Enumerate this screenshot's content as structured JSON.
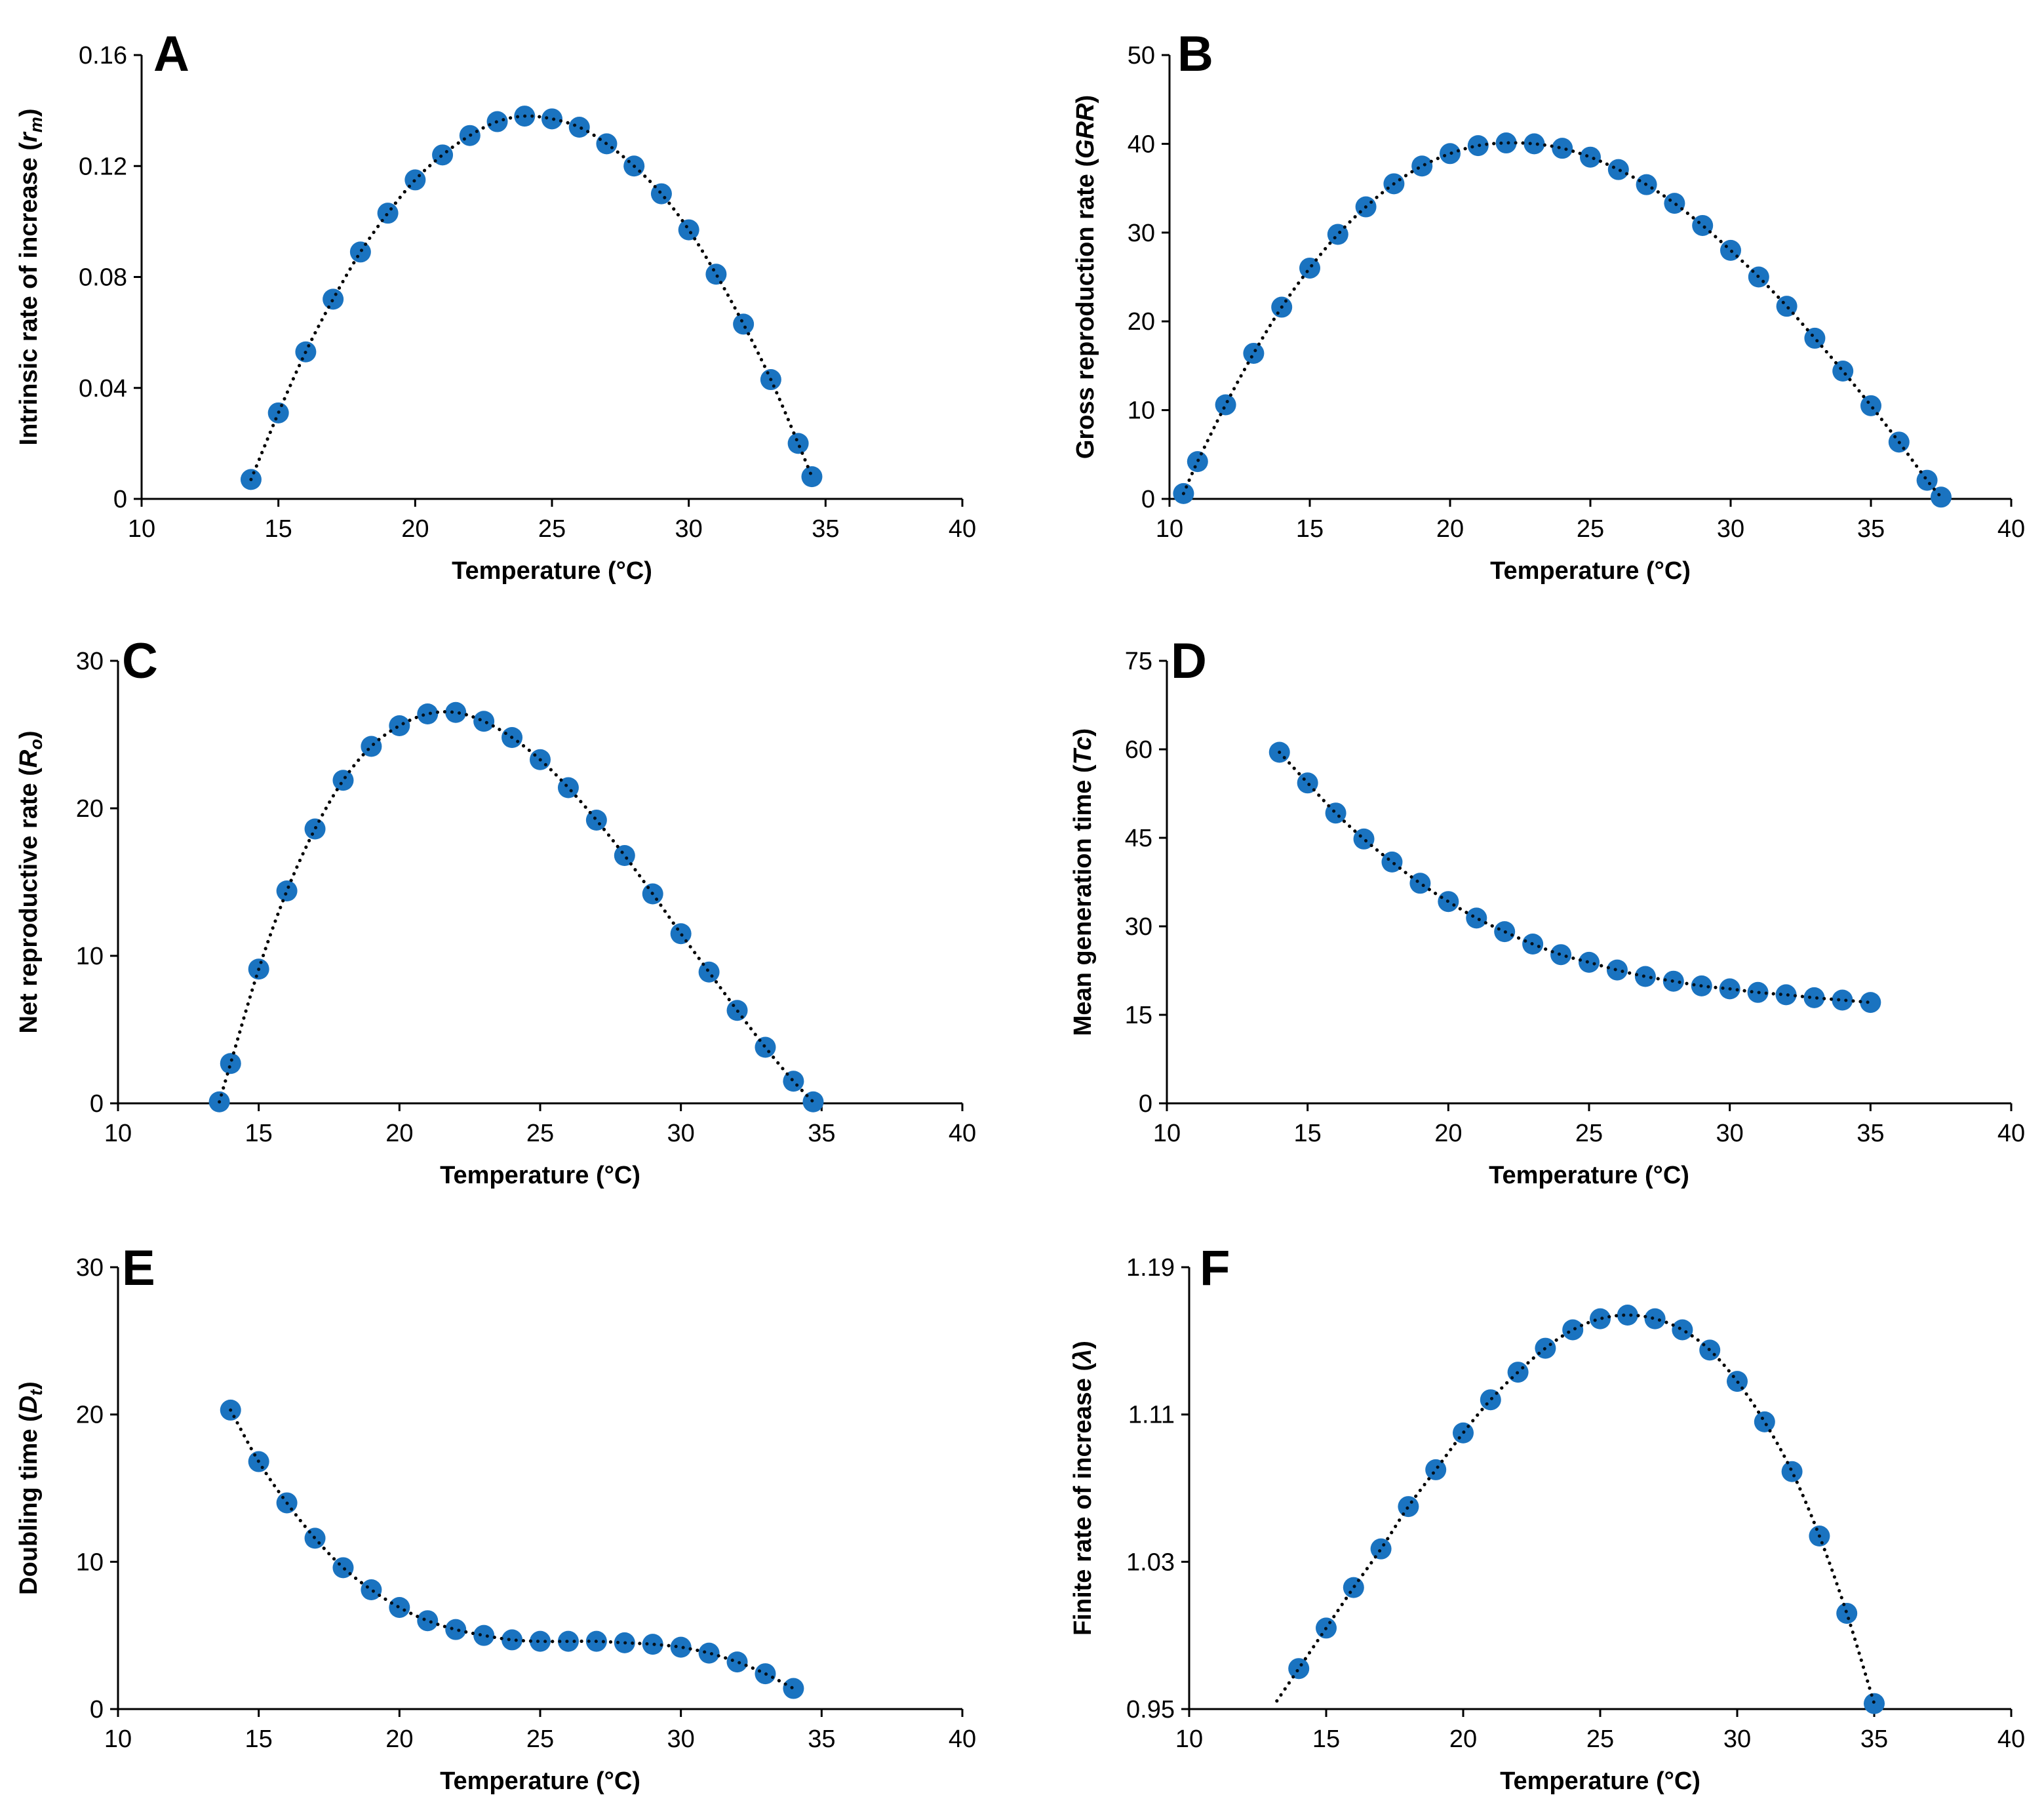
{
  "figure": {
    "style": {
      "marker_color": "#1a73c0",
      "trend_color": "#000000",
      "axis_color": "#000000"
    }
  },
  "chart_data": [
    {
      "panel": "A",
      "type": "scatter",
      "trendline": "dotted",
      "xlabel": "Temperature (°C)",
      "ylabel_parts": [
        {
          "text": "Intrinsic rate of increase (",
          "style": "normal"
        },
        {
          "text": "r",
          "style": "italic"
        },
        {
          "text": "m",
          "style": "italic-sub"
        },
        {
          "text": ")",
          "style": "normal"
        }
      ],
      "xlim": [
        10,
        40
      ],
      "ylim": [
        0,
        0.16
      ],
      "xticks": [
        10,
        15,
        20,
        25,
        30,
        35,
        40
      ],
      "yticks": [
        0,
        0.04,
        0.08,
        0.12,
        0.16
      ],
      "x": [
        14,
        15,
        16,
        17,
        18,
        19,
        20,
        21,
        22,
        23,
        24,
        25,
        26,
        27,
        28,
        29,
        30,
        31,
        32,
        33,
        34,
        34.5
      ],
      "y": [
        0.007,
        0.031,
        0.053,
        0.072,
        0.089,
        0.103,
        0.115,
        0.124,
        0.131,
        0.136,
        0.138,
        0.137,
        0.134,
        0.128,
        0.12,
        0.11,
        0.097,
        0.081,
        0.063,
        0.043,
        0.02,
        0.008
      ]
    },
    {
      "panel": "B",
      "type": "scatter",
      "trendline": "dotted",
      "xlabel": "Temperature (°C)",
      "ylabel_parts": [
        {
          "text": "Gross reproduction rate (",
          "style": "normal"
        },
        {
          "text": "GRR",
          "style": "italic"
        },
        {
          "text": ")",
          "style": "normal"
        }
      ],
      "xlim": [
        10,
        40
      ],
      "ylim": [
        0,
        50
      ],
      "xticks": [
        10,
        15,
        20,
        25,
        30,
        35,
        40
      ],
      "yticks": [
        0,
        10,
        20,
        30,
        40,
        50
      ],
      "x": [
        10.5,
        11,
        12,
        13,
        14,
        15,
        16,
        17,
        18,
        19,
        20,
        21,
        22,
        23,
        24,
        25,
        26,
        27,
        28,
        29,
        30,
        31,
        32,
        33,
        34,
        35,
        36,
        37,
        37.5
      ],
      "y": [
        0.6,
        4.2,
        10.6,
        16.4,
        21.6,
        26.0,
        29.8,
        32.9,
        35.5,
        37.5,
        38.9,
        39.8,
        40.1,
        40.0,
        39.5,
        38.5,
        37.1,
        35.4,
        33.3,
        30.8,
        28.0,
        25.0,
        21.7,
        18.1,
        14.4,
        10.5,
        6.4,
        2.1,
        0.2
      ]
    },
    {
      "panel": "C",
      "type": "scatter",
      "trendline": "dotted",
      "xlabel": "Temperature (°C)",
      "ylabel_parts": [
        {
          "text": "Net reproductive rate (",
          "style": "normal"
        },
        {
          "text": "R",
          "style": "italic"
        },
        {
          "text": "o",
          "style": "italic-sub"
        },
        {
          "text": ")",
          "style": "normal"
        }
      ],
      "xlim": [
        10,
        40
      ],
      "ylim": [
        0,
        30
      ],
      "xticks": [
        10,
        15,
        20,
        25,
        30,
        35,
        40
      ],
      "yticks": [
        0,
        10,
        20,
        30
      ],
      "x": [
        13.6,
        14,
        15,
        16,
        17,
        18,
        19,
        20,
        21,
        22,
        23,
        24,
        25,
        26,
        27,
        28,
        29,
        30,
        31,
        32,
        33,
        34,
        34.7
      ],
      "y": [
        0.1,
        2.7,
        9.1,
        14.4,
        18.6,
        21.9,
        24.2,
        25.6,
        26.4,
        26.5,
        25.9,
        24.8,
        23.3,
        21.4,
        19.2,
        16.8,
        14.2,
        11.5,
        8.9,
        6.3,
        3.8,
        1.5,
        0.1
      ]
    },
    {
      "panel": "D",
      "type": "scatter",
      "trendline": "dotted",
      "xlabel": "Temperature (°C)",
      "ylabel_parts": [
        {
          "text": "Mean generation time (",
          "style": "normal"
        },
        {
          "text": "Tc",
          "style": "italic"
        },
        {
          "text": ")",
          "style": "normal"
        }
      ],
      "xlim": [
        10,
        40
      ],
      "ylim": [
        0,
        75
      ],
      "xticks": [
        10,
        15,
        20,
        25,
        30,
        35,
        40
      ],
      "yticks": [
        0,
        15,
        30,
        45,
        60,
        75
      ],
      "x": [
        14,
        15,
        16,
        17,
        18,
        19,
        20,
        21,
        22,
        23,
        24,
        25,
        26,
        27,
        28,
        29,
        30,
        31,
        32,
        33,
        34,
        35
      ],
      "y": [
        59.5,
        54.3,
        49.2,
        44.8,
        40.9,
        37.3,
        34.2,
        31.4,
        29.1,
        27.0,
        25.2,
        23.9,
        22.6,
        21.5,
        20.7,
        19.9,
        19.4,
        18.8,
        18.4,
        17.9,
        17.5,
        17.1
      ]
    },
    {
      "panel": "E",
      "type": "scatter",
      "trendline": "dotted",
      "xlabel": "Temperature (°C)",
      "ylabel_parts": [
        {
          "text": "Doubling time (",
          "style": "normal"
        },
        {
          "text": "D",
          "style": "italic"
        },
        {
          "text": "t",
          "style": "italic-sub"
        },
        {
          "text": ")",
          "style": "normal"
        }
      ],
      "xlim": [
        10,
        40
      ],
      "ylim": [
        0,
        30
      ],
      "xticks": [
        10,
        15,
        20,
        25,
        30,
        35,
        40
      ],
      "yticks": [
        0,
        10,
        20,
        30
      ],
      "x": [
        14,
        15,
        16,
        17,
        18,
        19,
        20,
        21,
        22,
        23,
        24,
        25,
        26,
        27,
        28,
        29,
        30,
        31,
        32,
        33,
        34
      ],
      "y": [
        20.3,
        16.8,
        14.0,
        11.6,
        9.6,
        8.1,
        6.9,
        6.0,
        5.4,
        5.0,
        4.7,
        4.6,
        4.6,
        4.6,
        4.5,
        4.4,
        4.2,
        3.8,
        3.2,
        2.4,
        1.4
      ]
    },
    {
      "panel": "F",
      "type": "scatter",
      "trendline": "dotted",
      "xlabel": "Temperature (°C)",
      "ylabel_parts": [
        {
          "text": "Finite rate of increase (",
          "style": "normal"
        },
        {
          "text": "λ",
          "style": "italic"
        },
        {
          "text": ")",
          "style": "normal"
        }
      ],
      "xlim": [
        10,
        40
      ],
      "ylim": [
        0.95,
        1.19
      ],
      "xticks": [
        10,
        15,
        20,
        25,
        30,
        35,
        40
      ],
      "yticks": [
        0.95,
        1.03,
        1.11,
        1.19
      ],
      "ytick_labels": [
        "0.95",
        "1.03",
        "1.11",
        "1.19"
      ],
      "trend_x_start": 13.2,
      "x": [
        14,
        15,
        16,
        17,
        18,
        19,
        20,
        21,
        22,
        23,
        24,
        25,
        26,
        27,
        28,
        29,
        30,
        31,
        32,
        33,
        34,
        35
      ],
      "y": [
        0.972,
        0.994,
        1.016,
        1.037,
        1.06,
        1.08,
        1.1,
        1.118,
        1.133,
        1.146,
        1.156,
        1.162,
        1.164,
        1.162,
        1.156,
        1.145,
        1.128,
        1.106,
        1.079,
        1.044,
        1.002,
        0.953
      ]
    }
  ]
}
